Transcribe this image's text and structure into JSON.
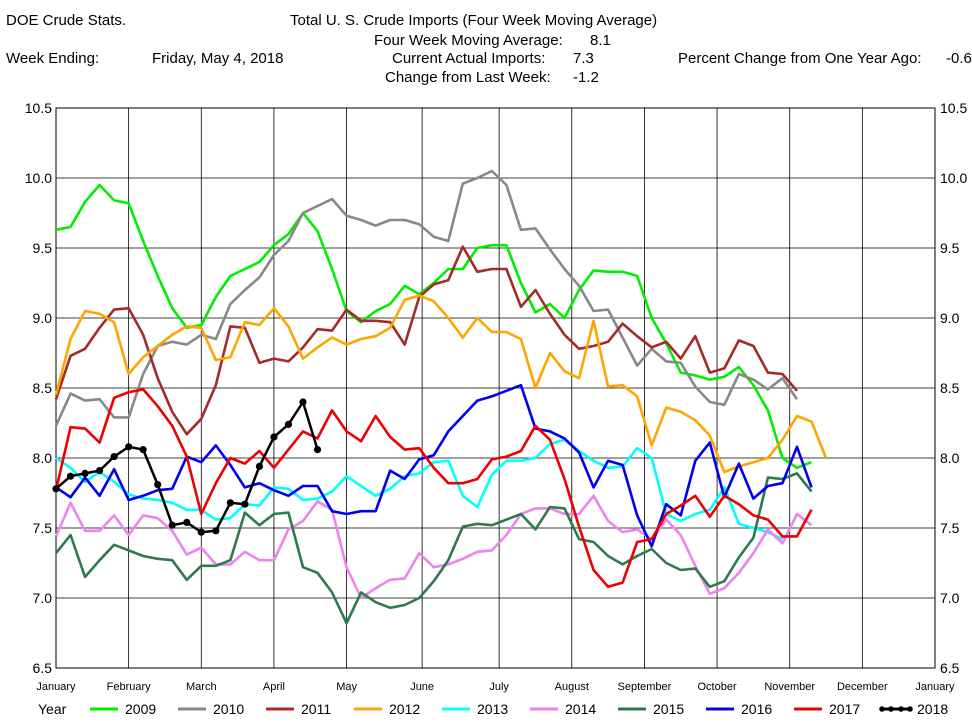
{
  "header": {
    "app_title": "DOE Crude Stats.",
    "chart_title": "Total U.  S. Crude Imports (Four Week Moving Average)",
    "moving_avg_label": "Four Week Moving Average:",
    "moving_avg_value": "8.1",
    "week_ending_label": "Week Ending:",
    "week_ending_value": "Friday, May 4, 2018",
    "current_label": "Current Actual Imports:",
    "current_value": "7.3",
    "change_label": "Change from Last Week:",
    "change_value": "-1.2",
    "pct_change_label": "Percent Change from One Year Ago:",
    "pct_change_value": "-0.6"
  },
  "chart_data": {
    "type": "line",
    "title": "Total U.  S. Crude Imports (Four Week Moving Average)",
    "ylim": [
      6.5,
      10.5
    ],
    "y_ticks": [
      "6.5",
      "7.0",
      "7.5",
      "8.0",
      "8.5",
      "9.0",
      "9.5",
      "10.0",
      "10.5"
    ],
    "x_range": [
      0,
      52
    ],
    "x_ticks": [
      {
        "label": "January",
        "week": 0
      },
      {
        "label": "February",
        "week": 5
      },
      {
        "label": "March",
        "week": 10
      },
      {
        "label": "April",
        "week": 15
      },
      {
        "label": "May",
        "week": 20
      },
      {
        "label": "June",
        "week": 25.2
      },
      {
        "label": "July",
        "week": 30.5
      },
      {
        "label": "August",
        "week": 35.5
      },
      {
        "label": "September",
        "week": 40.5
      },
      {
        "label": "October",
        "week": 45.5
      },
      {
        "label": "November",
        "week": 50.5
      },
      {
        "label": "December",
        "week": 55.5
      },
      {
        "label": "January",
        "week": 60.5
      }
    ],
    "legend_title": "Year",
    "legend_placement": "bottom",
    "grid": true,
    "series": [
      {
        "name": "2009",
        "color": "#00ee00",
        "values": [
          9.63,
          9.65,
          9.83,
          9.95,
          9.84,
          9.82,
          9.55,
          9.3,
          9.07,
          8.93,
          8.95,
          9.15,
          9.3,
          9.35,
          9.4,
          9.52,
          9.6,
          9.75,
          9.62,
          9.35,
          9.05,
          8.97,
          9.05,
          9.1,
          9.23,
          9.17,
          9.25,
          9.35,
          9.35,
          9.5,
          9.52,
          9.52,
          9.25,
          9.04,
          9.1,
          9.0,
          9.2,
          9.34,
          9.33,
          9.33,
          9.3,
          9.0,
          8.82,
          8.61,
          8.59,
          8.56,
          8.58,
          8.65,
          8.52,
          8.34,
          8.0,
          7.93,
          7.97
        ]
      },
      {
        "name": "2010",
        "color": "#888888",
        "values": [
          8.23,
          8.46,
          8.41,
          8.42,
          8.29,
          8.29,
          8.6,
          8.8,
          8.83,
          8.81,
          8.88,
          8.85,
          9.1,
          9.2,
          9.29,
          9.45,
          9.55,
          9.75,
          9.8,
          9.85,
          9.73,
          9.7,
          9.66,
          9.7,
          9.7,
          9.67,
          9.58,
          9.55,
          9.96,
          10.0,
          10.05,
          9.95,
          9.63,
          9.64,
          9.49,
          9.35,
          9.23,
          9.05,
          9.06,
          8.86,
          8.66,
          8.78,
          8.69,
          8.68,
          8.51,
          8.4,
          8.38,
          8.6,
          8.56,
          8.49,
          8.57,
          8.42
        ]
      },
      {
        "name": "2011",
        "color": "#a52a2a",
        "values": [
          8.42,
          8.73,
          8.78,
          8.93,
          9.06,
          9.07,
          8.88,
          8.57,
          8.33,
          8.17,
          8.28,
          8.52,
          8.94,
          8.93,
          8.68,
          8.71,
          8.69,
          8.79,
          8.92,
          8.91,
          9.06,
          8.98,
          8.98,
          8.97,
          8.81,
          9.15,
          9.24,
          9.27,
          9.51,
          9.33,
          9.35,
          9.35,
          9.08,
          9.2,
          9.03,
          8.88,
          8.78,
          8.8,
          8.83,
          8.96,
          8.87,
          8.79,
          8.83,
          8.71,
          8.87,
          8.61,
          8.64,
          8.84,
          8.8,
          8.61,
          8.6,
          8.48
        ]
      },
      {
        "name": "2012",
        "color": "#ffa500",
        "values": [
          8.45,
          8.85,
          9.05,
          9.03,
          8.97,
          8.6,
          8.72,
          8.8,
          8.88,
          8.94,
          8.93,
          8.7,
          8.72,
          8.97,
          8.95,
          9.07,
          8.94,
          8.71,
          8.79,
          8.86,
          8.81,
          8.85,
          8.87,
          8.93,
          9.13,
          9.16,
          9.12,
          9.0,
          8.86,
          9.0,
          8.9,
          8.9,
          8.85,
          8.5,
          8.75,
          8.62,
          8.57,
          8.98,
          8.51,
          8.52,
          8.44,
          8.09,
          8.36,
          8.33,
          8.27,
          8.16,
          7.9,
          7.94,
          7.97,
          8.0,
          8.13,
          8.3,
          8.26,
          8.0
        ]
      },
      {
        "name": "2013",
        "color": "#00ffff",
        "values": [
          8.0,
          7.93,
          7.83,
          7.9,
          7.83,
          7.74,
          7.71,
          7.7,
          7.68,
          7.63,
          7.63,
          7.56,
          7.57,
          7.67,
          7.66,
          7.79,
          7.78,
          7.7,
          7.71,
          7.76,
          7.87,
          7.8,
          7.73,
          7.78,
          7.87,
          7.89,
          7.97,
          7.98,
          7.73,
          7.65,
          7.88,
          7.98,
          7.98,
          8.0,
          8.1,
          8.13,
          8.05,
          7.98,
          7.93,
          7.94,
          8.07,
          8.0,
          7.6,
          7.55,
          7.6,
          7.63,
          7.79,
          7.53,
          7.5,
          7.47,
          7.42
        ]
      },
      {
        "name": "2014",
        "color": "#ee82ee",
        "values": [
          7.44,
          7.68,
          7.48,
          7.48,
          7.59,
          7.45,
          7.59,
          7.57,
          7.48,
          7.31,
          7.36,
          7.24,
          7.24,
          7.33,
          7.27,
          7.27,
          7.49,
          7.55,
          7.69,
          7.63,
          7.22,
          7.0,
          7.07,
          7.13,
          7.14,
          7.32,
          7.22,
          7.24,
          7.28,
          7.33,
          7.34,
          7.45,
          7.6,
          7.64,
          7.64,
          7.6,
          7.6,
          7.73,
          7.55,
          7.47,
          7.49,
          7.42,
          7.56,
          7.45,
          7.23,
          7.03,
          7.07,
          7.18,
          7.32,
          7.49,
          7.39,
          7.6,
          7.52
        ]
      },
      {
        "name": "2015",
        "color": "#2e7a4e",
        "values": [
          7.32,
          7.45,
          7.15,
          7.27,
          7.38,
          7.34,
          7.3,
          7.28,
          7.27,
          7.13,
          7.23,
          7.23,
          7.27,
          7.61,
          7.52,
          7.6,
          7.61,
          7.22,
          7.18,
          7.04,
          6.82,
          7.04,
          6.97,
          6.93,
          6.95,
          7.0,
          7.12,
          7.27,
          7.51,
          7.53,
          7.52,
          7.56,
          7.6,
          7.49,
          7.65,
          7.64,
          7.42,
          7.4,
          7.3,
          7.24,
          7.3,
          7.35,
          7.25,
          7.2,
          7.21,
          7.08,
          7.12,
          7.29,
          7.43,
          7.86,
          7.85,
          7.89,
          7.76
        ]
      },
      {
        "name": "2016",
        "color": "#0000ee",
        "values": [
          7.79,
          7.72,
          7.86,
          7.73,
          7.92,
          7.7,
          7.73,
          7.77,
          7.78,
          8.01,
          7.97,
          8.09,
          7.95,
          7.79,
          7.82,
          7.77,
          7.73,
          7.8,
          7.8,
          7.62,
          7.6,
          7.62,
          7.62,
          7.91,
          7.85,
          7.99,
          8.02,
          8.19,
          8.3,
          8.41,
          8.44,
          8.48,
          8.52,
          8.21,
          8.19,
          8.14,
          8.04,
          7.79,
          7.98,
          7.95,
          7.59,
          7.37,
          7.67,
          7.59,
          7.98,
          8.11,
          7.72,
          7.96,
          7.71,
          7.8,
          7.82,
          8.08,
          7.79
        ]
      },
      {
        "name": "2017",
        "color": "#ee0000",
        "values": [
          7.77,
          8.22,
          8.21,
          8.11,
          8.43,
          8.47,
          8.49,
          8.37,
          8.23,
          8.01,
          7.6,
          7.82,
          8.0,
          7.96,
          8.05,
          7.93,
          8.06,
          8.19,
          8.14,
          8.34,
          8.19,
          8.12,
          8.3,
          8.15,
          8.06,
          8.07,
          7.93,
          7.82,
          7.82,
          7.85,
          7.99,
          8.01,
          8.05,
          8.23,
          8.13,
          7.85,
          7.51,
          7.2,
          7.08,
          7.11,
          7.4,
          7.42,
          7.6,
          7.66,
          7.73,
          7.58,
          7.73,
          7.67,
          7.59,
          7.56,
          7.44,
          7.44,
          7.63
        ]
      },
      {
        "name": "2018",
        "color": "#000000",
        "markers": true,
        "values": [
          7.78,
          7.87,
          7.89,
          7.91,
          8.01,
          8.08,
          8.06,
          7.81,
          7.52,
          7.54,
          7.47,
          7.48,
          7.68,
          7.67,
          7.94,
          8.15,
          8.24,
          8.4,
          8.06
        ]
      }
    ]
  }
}
